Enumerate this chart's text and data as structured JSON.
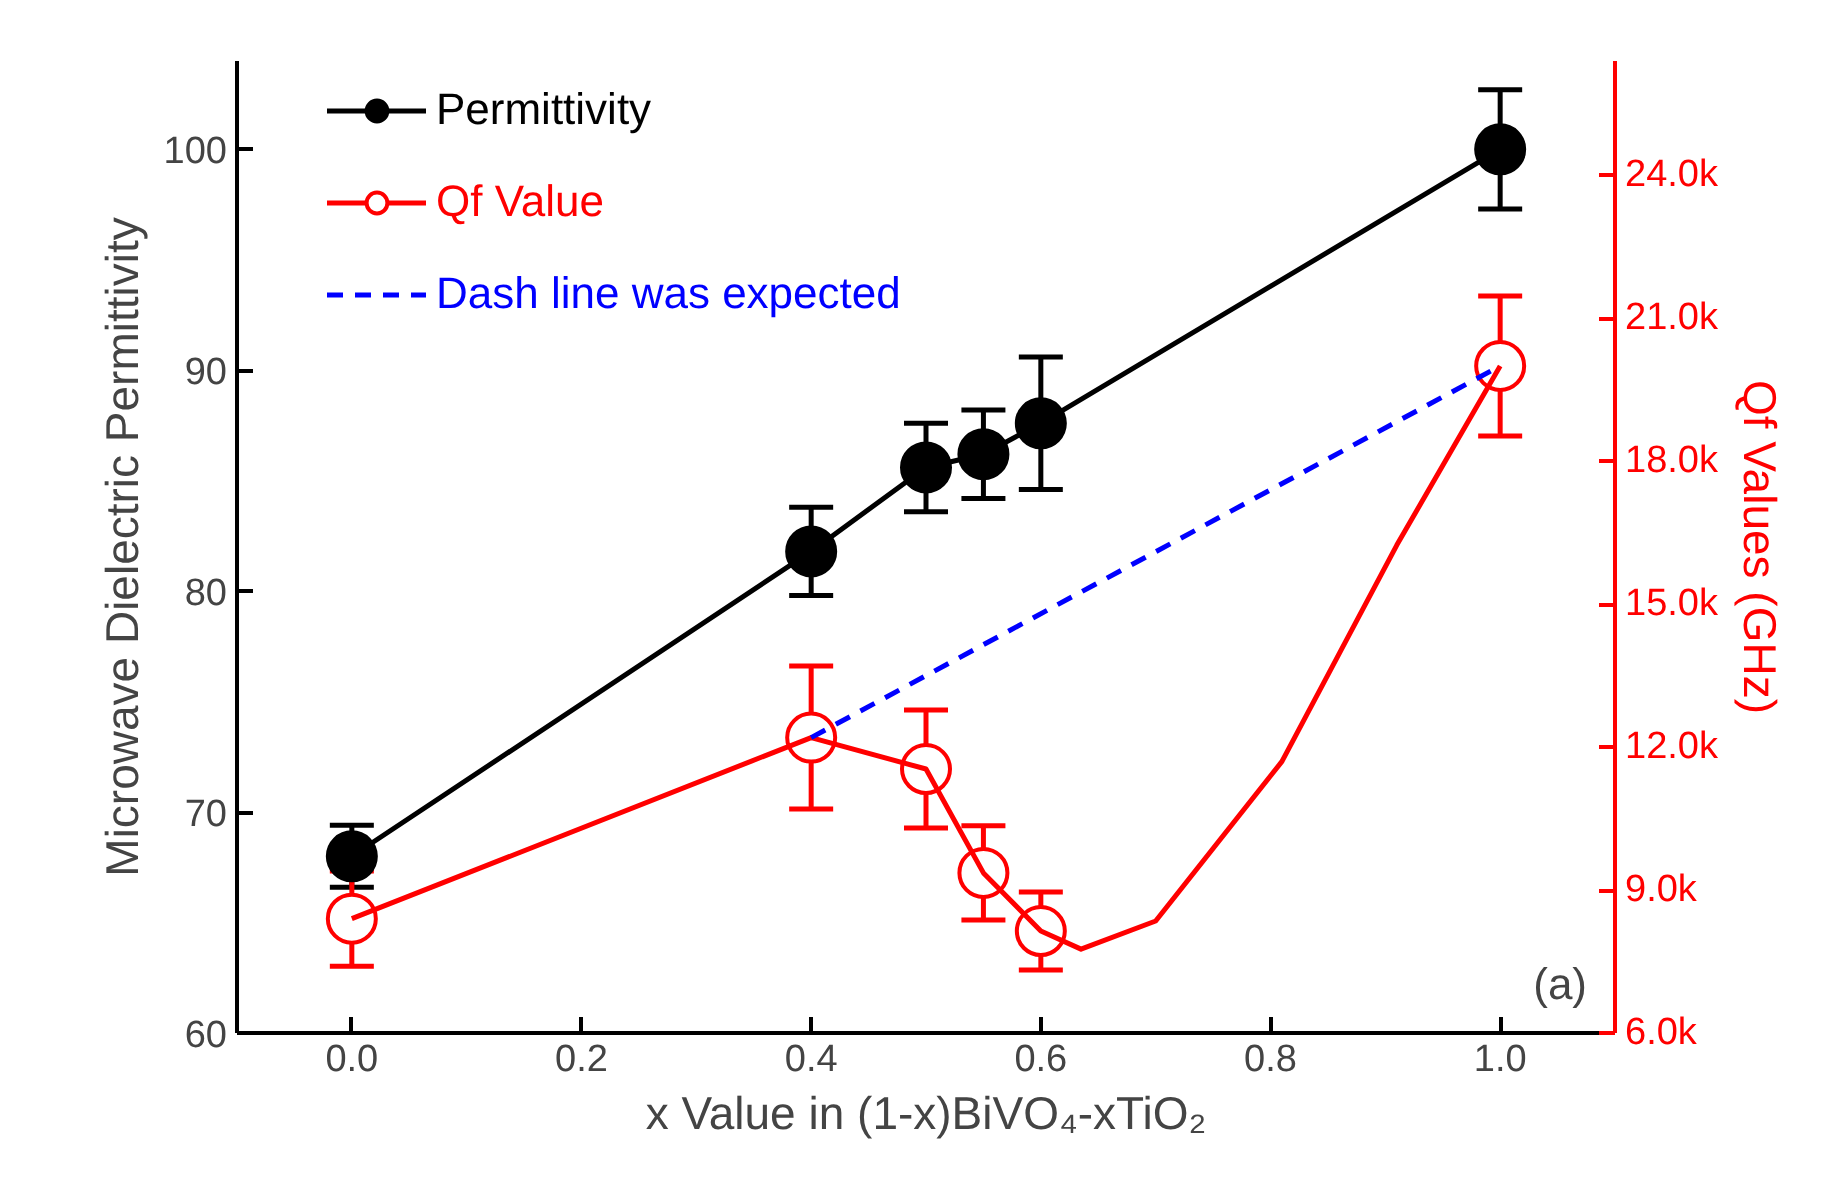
{
  "chart_data": {
    "type": "line",
    "xlabel": "x Value in (1-x)BiVO₄-xTiO₂",
    "ylabel": "Microwave Dielectric Permittivity",
    "y2label": "Qf Values (GHz)",
    "xlim": [
      -0.1,
      1.1
    ],
    "xticks": [
      {
        "value": 0,
        "label": "0.0"
      },
      0.2,
      0.4,
      0.6,
      0.8,
      {
        "value": 1,
        "label": "1.0"
      }
    ],
    "ylim": [
      60,
      104
    ],
    "yticks": [
      60,
      70,
      80,
      90,
      100
    ],
    "y2lim": [
      6000,
      26400
    ],
    "y2ticks": [
      {
        "value": 6000,
        "label": "6.0k"
      },
      {
        "value": 9000,
        "label": "9.0k"
      },
      {
        "value": 12000,
        "label": "12.0k"
      },
      {
        "value": 15000,
        "label": "15.0k"
      },
      {
        "value": 18000,
        "label": "18.0k"
      },
      {
        "value": 21000,
        "label": "21.0k"
      },
      {
        "value": 24000,
        "label": "24.0k"
      }
    ],
    "grid": false,
    "legend": "top left",
    "annotations": [
      "(a)"
    ],
    "series": [
      {
        "name": "Permittivity",
        "color": "#000000",
        "marker": "circle",
        "x": [
          0,
          0.4,
          0.5,
          0.55,
          0.6,
          1.0
        ],
        "values": [
          68,
          81.8,
          85.6,
          86.2,
          87.6,
          100
        ],
        "errors": [
          1.4,
          2.0,
          2.0,
          2.0,
          3.0,
          2.7
        ]
      },
      {
        "name": "Qf Value",
        "type": "scatter",
        "color": "#ff0000",
        "marker": "circle",
        "axis": "y2",
        "x": [
          0,
          0.4,
          0.5,
          0.55,
          0.6,
          1.0
        ],
        "values": [
          8400,
          12200,
          11540,
          9360,
          8140,
          20000
        ],
        "errors": [
          1000,
          1500,
          1240,
          990,
          820,
          1470
        ]
      },
      {
        "type": "line",
        "color": "#ff0000",
        "axis": "y2",
        "x": [
          0,
          0.4,
          0.5,
          0.55,
          0.6,
          0.635,
          0.7,
          0.81,
          0.91,
          1.0
        ],
        "values": [
          8400,
          12200,
          11540,
          9360,
          8140,
          7760,
          8350,
          11700,
          16240,
          20000
        ]
      },
      {
        "name": "Dash line was expected",
        "type": "line",
        "color": "#0000ff",
        "line_style": "dashed",
        "axis": "y2",
        "x": [
          0.4,
          1.0
        ],
        "values": [
          12200,
          20000
        ]
      }
    ]
  }
}
